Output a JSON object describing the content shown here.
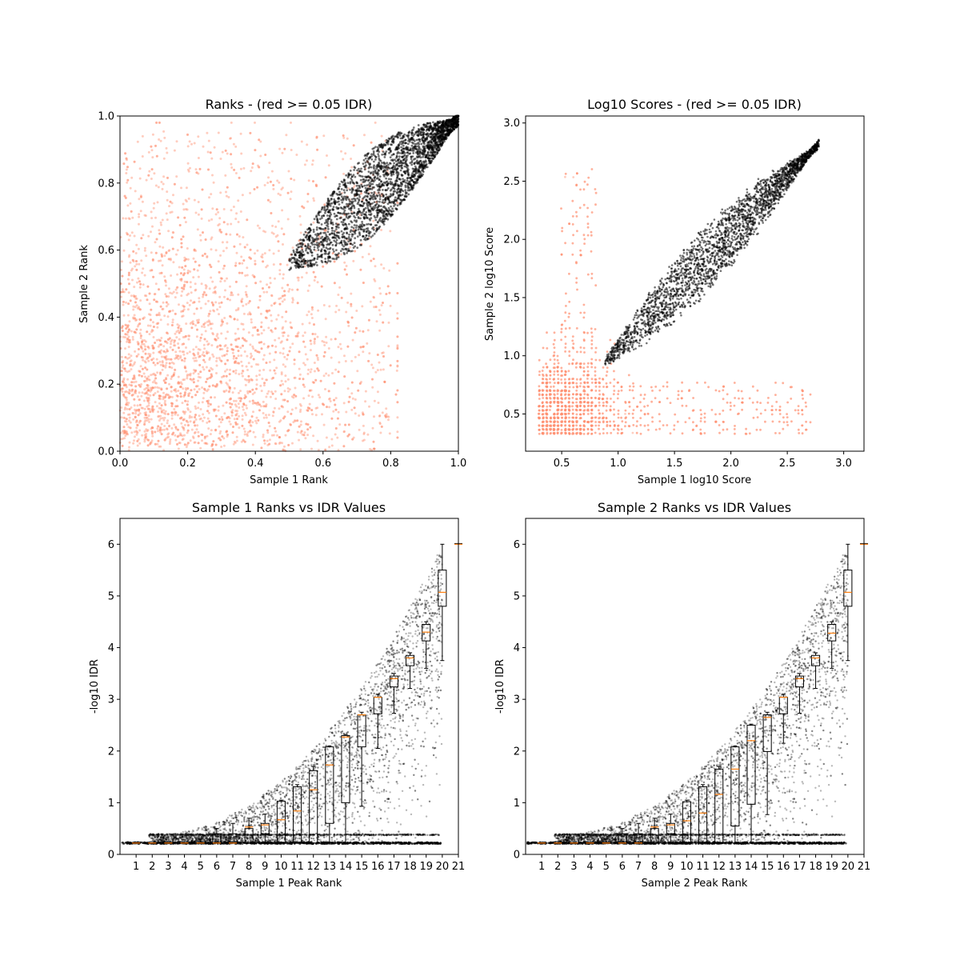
{
  "chart_data": [
    {
      "type": "scatter",
      "title": "Ranks - (red >= 0.05 IDR)",
      "xlabel": "Sample 1 Rank",
      "ylabel": "Sample 2 Rank",
      "xlim": [
        0.0,
        1.0
      ],
      "ylim": [
        0.0,
        1.0
      ],
      "xticks": [
        "0.0",
        "0.2",
        "0.4",
        "0.6",
        "0.8",
        "1.0"
      ],
      "yticks": [
        "0.0",
        "0.2",
        "0.4",
        "0.6",
        "0.8",
        "1.0"
      ],
      "grid": false,
      "colors": {
        "pass": "#000000",
        "fail": "#ff9070"
      },
      "series": [
        {
          "values_description_pass": "dense diagonal band from (0.5,0.52) to (1.0,1.0)",
          "band": {
            "x_start": 0.5,
            "x_end": 1.0,
            "center_y_at_start": 0.56,
            "center_y_at_end": 0.99
          }
        }
      ]
    },
    {
      "type": "scatter",
      "title": "Log10 Scores - (red >= 0.05 IDR)",
      "xlabel": "Sample 1 log10 Score",
      "ylabel": "Sample 2 log10 Score",
      "xlim": [
        0.18,
        3.18
      ],
      "ylim": [
        0.18,
        3.06
      ],
      "xticks": [
        0.5,
        1.0,
        1.5,
        2.0,
        2.5,
        3.0
      ],
      "xtick_labels": [
        "0.5",
        "1.0",
        "1.5",
        "2.0",
        "2.5",
        "3.0"
      ],
      "yticks": [
        0.5,
        1.0,
        1.5,
        2.0,
        2.5,
        3.0
      ],
      "ytick_labels": [
        "0.5",
        "1.0",
        "1.5",
        "2.0",
        "2.5",
        "3.0"
      ],
      "grid": false,
      "colors": {
        "pass": "#000000",
        "fail": "#ff9070"
      }
    },
    {
      "type": "scatter+box",
      "title": "Sample 1 Ranks vs IDR Values",
      "xlabel": "Sample 1 Peak Rank",
      "ylabel": "-log10 IDR",
      "xlim": [
        0,
        21
      ],
      "ylim": [
        0,
        6.5
      ],
      "xticks": [
        "1",
        "2",
        "3",
        "4",
        "5",
        "6",
        "7",
        "8",
        "9",
        "10",
        "11",
        "12",
        "13",
        "14",
        "15",
        "16",
        "17",
        "18",
        "19",
        "20",
        "21"
      ],
      "yticks": [
        "0",
        "1",
        "2",
        "3",
        "4",
        "5",
        "6"
      ],
      "grid": false,
      "box_medians": [
        0.22,
        0.22,
        0.22,
        0.22,
        0.22,
        0.22,
        0.22,
        0.53,
        0.57,
        0.67,
        0.84,
        1.25,
        1.73,
        2.27,
        2.7,
        3.04,
        3.4,
        3.8,
        4.3,
        5.07
      ],
      "box_q1": [
        0.22,
        0.22,
        0.22,
        0.22,
        0.22,
        0.22,
        0.22,
        0.22,
        0.4,
        0.22,
        0.22,
        0.22,
        0.6,
        1.0,
        2.08,
        2.72,
        3.24,
        3.65,
        4.13,
        4.8
      ],
      "box_q3": [
        0.22,
        0.22,
        0.22,
        0.22,
        0.22,
        0.4,
        0.4,
        0.5,
        0.6,
        1.03,
        1.31,
        1.62,
        2.08,
        2.3,
        2.7,
        3.04,
        3.45,
        3.85,
        4.45,
        5.5
      ],
      "box_whisker_low": [
        0.22,
        0.22,
        0.22,
        0.22,
        0.22,
        0.22,
        0.22,
        0.22,
        0.22,
        0.22,
        0.22,
        0.22,
        0.22,
        0.22,
        0.93,
        2.05,
        2.73,
        3.21,
        3.6,
        3.75
      ],
      "box_whisker_high": [
        0.22,
        0.22,
        0.22,
        0.22,
        0.3,
        0.5,
        0.6,
        0.7,
        0.78,
        1.05,
        1.35,
        1.7,
        2.1,
        2.32,
        2.75,
        3.1,
        3.5,
        3.9,
        4.5,
        6.0
      ],
      "outlier_x": 21,
      "outlier_y": 6.0
    },
    {
      "type": "scatter+box",
      "title": "Sample 2 Ranks vs IDR Values",
      "xlabel": "Sample 2 Peak Rank",
      "ylabel": "-log10 IDR",
      "xlim": [
        0,
        21
      ],
      "ylim": [
        0,
        6.5
      ],
      "xticks": [
        "1",
        "2",
        "3",
        "4",
        "5",
        "6",
        "7",
        "8",
        "9",
        "10",
        "11",
        "12",
        "13",
        "14",
        "15",
        "16",
        "17",
        "18",
        "19",
        "20",
        "21"
      ],
      "yticks": [
        "0",
        "1",
        "2",
        "3",
        "4",
        "5",
        "6"
      ],
      "grid": false,
      "box_medians": [
        0.22,
        0.22,
        0.22,
        0.22,
        0.22,
        0.22,
        0.22,
        0.53,
        0.57,
        0.65,
        0.8,
        1.16,
        1.65,
        2.2,
        2.65,
        3.04,
        3.4,
        3.8,
        4.28,
        5.07
      ],
      "box_q1": [
        0.22,
        0.22,
        0.22,
        0.22,
        0.22,
        0.22,
        0.22,
        0.22,
        0.4,
        0.22,
        0.22,
        0.22,
        0.55,
        0.97,
        1.99,
        2.72,
        3.24,
        3.65,
        4.13,
        4.8
      ],
      "box_q3": [
        0.22,
        0.22,
        0.22,
        0.22,
        0.22,
        0.4,
        0.4,
        0.5,
        0.6,
        1.02,
        1.31,
        1.65,
        2.08,
        2.5,
        2.7,
        3.04,
        3.45,
        3.85,
        4.45,
        5.5
      ],
      "box_whisker_low": [
        0.22,
        0.22,
        0.22,
        0.22,
        0.22,
        0.22,
        0.22,
        0.22,
        0.22,
        0.22,
        0.22,
        0.22,
        0.22,
        0.22,
        0.77,
        2.15,
        2.73,
        3.21,
        3.6,
        3.75
      ],
      "box_whisker_high": [
        0.22,
        0.22,
        0.22,
        0.22,
        0.3,
        0.5,
        0.6,
        0.7,
        0.78,
        1.05,
        1.35,
        1.7,
        2.1,
        2.52,
        2.75,
        3.1,
        3.5,
        3.9,
        4.5,
        6.0
      ],
      "outlier_x": 21,
      "outlier_y": 6.0
    }
  ]
}
